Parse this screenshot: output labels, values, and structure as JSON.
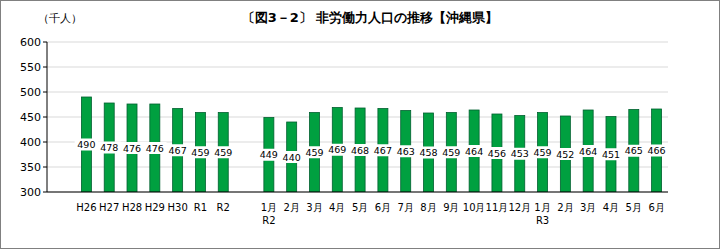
{
  "chart_data": {
    "type": "bar",
    "title": "〔図3－2〕 非労働力人口の推移【沖縄県】",
    "y_label": "（千人）",
    "categories": [
      "H26",
      "H27",
      "H28",
      "H29",
      "H30",
      "R1",
      "R2",
      null,
      "1月\nR2",
      "2月",
      "3月",
      "4月",
      "5月",
      "6月",
      "7月",
      "8月",
      "9月",
      "10月",
      "11月",
      "12月",
      "1月\nR3",
      "2月",
      "3月",
      "4月",
      "5月",
      "6月"
    ],
    "values": [
      490,
      478,
      476,
      476,
      467,
      459,
      459,
      null,
      449,
      440,
      459,
      469,
      468,
      467,
      463,
      458,
      459,
      464,
      456,
      453,
      459,
      452,
      464,
      451,
      465,
      466
    ],
    "color": "#00a040",
    "ylim": [
      300,
      600
    ],
    "yticks": [
      300,
      350,
      400,
      450,
      500,
      550,
      600
    ],
    "grid": true,
    "data_labels": true
  }
}
